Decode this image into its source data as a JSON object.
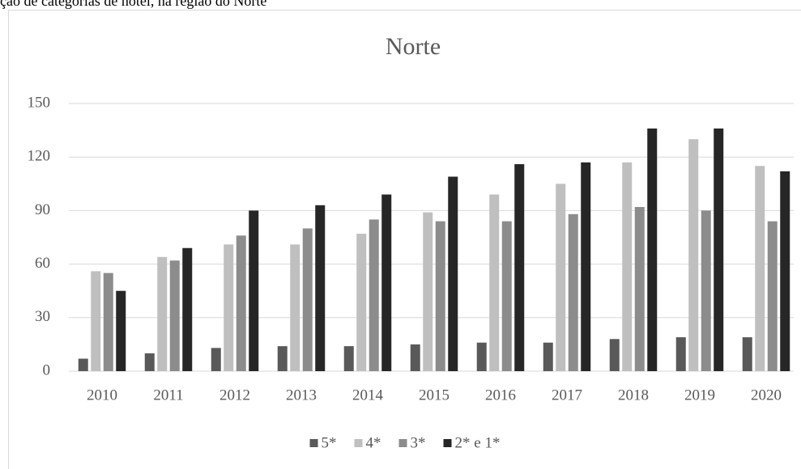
{
  "caption": "ção de categorias de hotel, na região do Norte",
  "chart_data": {
    "type": "bar",
    "title": "Norte",
    "categories": [
      "2010",
      "2011",
      "2012",
      "2013",
      "2014",
      "2015",
      "2016",
      "2017",
      "2018",
      "2019",
      "2020"
    ],
    "series": [
      {
        "name": "5*",
        "color": "#595959",
        "values": [
          7,
          10,
          13,
          14,
          14,
          15,
          16,
          16,
          18,
          19,
          19
        ]
      },
      {
        "name": "4*",
        "color": "#bfbfbf",
        "values": [
          56,
          64,
          71,
          71,
          77,
          89,
          99,
          105,
          117,
          130,
          115
        ]
      },
      {
        "name": "3*",
        "color": "#8c8c8c",
        "values": [
          55,
          62,
          76,
          80,
          85,
          84,
          84,
          88,
          92,
          90,
          84
        ]
      },
      {
        "name": "2* e 1*",
        "color": "#262626",
        "values": [
          45,
          69,
          90,
          93,
          99,
          109,
          116,
          117,
          136,
          136,
          112
        ]
      }
    ],
    "ylim": [
      0,
      150
    ],
    "yticks": [
      0,
      30,
      60,
      90,
      120,
      150
    ],
    "grid": true,
    "legend": "bottom"
  }
}
